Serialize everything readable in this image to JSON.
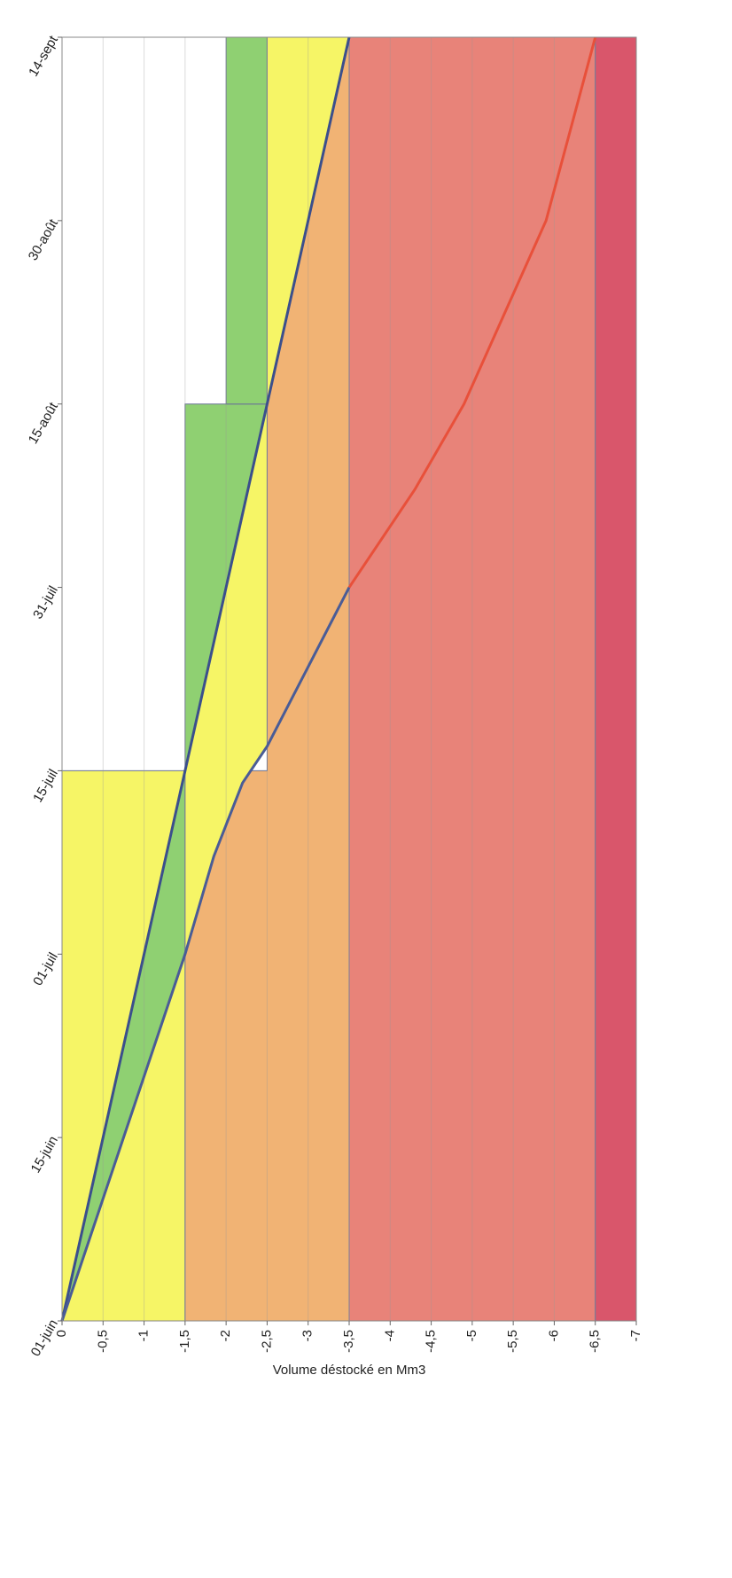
{
  "chart_data": {
    "type": "area",
    "ylabel": "Volume déstocké en Mm3",
    "xlim": [
      0,
      105
    ],
    "xticks": [
      {
        "value": 0,
        "label": "01-juin"
      },
      {
        "value": 15,
        "label": "15-juin"
      },
      {
        "value": 30,
        "label": "01-juil"
      },
      {
        "value": 45,
        "label": "15-juil"
      },
      {
        "value": 60,
        "label": "31-juil"
      },
      {
        "value": 75,
        "label": "15-août"
      },
      {
        "value": 90,
        "label": "30-août"
      },
      {
        "value": 105,
        "label": "14-sept"
      }
    ],
    "ylim": [
      0,
      -7
    ],
    "yticks": [
      0,
      {
        "value": -0.5,
        "label": "-0,5"
      },
      -1,
      {
        "value": -1.5,
        "label": "-1,5"
      },
      -2,
      {
        "value": -2.5,
        "label": "-2,5"
      },
      -3,
      {
        "value": -3.5,
        "label": "-3,5"
      },
      -4,
      {
        "value": -4.5,
        "label": "-4,5"
      },
      -5,
      {
        "value": -5.5,
        "label": "-5,5"
      },
      -6,
      {
        "value": -6.5,
        "label": "-6,5"
      },
      -7
    ],
    "grid": true,
    "zones": [
      {
        "color": "#e88379",
        "x": [
          0,
          105,
          105,
          0
        ],
        "values": [
          -3.5,
          -3.5,
          -6.5,
          -6.5
        ]
      },
      {
        "color": "#d9566b",
        "x": [
          0,
          105,
          105,
          0
        ],
        "values": [
          -6.5,
          -6.5,
          -7,
          -7
        ]
      },
      {
        "color": "#f6f566",
        "x": [
          0,
          45,
          45,
          0
        ],
        "values": [
          0,
          0,
          -1.5,
          -1.5
        ]
      },
      {
        "color": "#f1b374",
        "x": [
          0,
          45,
          45,
          105,
          105,
          0
        ],
        "values": [
          -1.5,
          -1.5,
          -2.5,
          -2.5,
          -3.5,
          -3.5
        ]
      },
      {
        "color": "#8fd072",
        "x": [
          0,
          45,
          45,
          30,
          15,
          0
        ],
        "values": [
          0,
          -1.5,
          -1.5,
          -1.5,
          -0.75,
          0
        ]
      },
      {
        "color": "#f6f566",
        "x": [
          30,
          45,
          75,
          47,
          44,
          38
        ],
        "values": [
          -1.5,
          -1.5,
          -2.5,
          -2.5,
          -2.2,
          -1.85
        ]
      },
      {
        "color": "#8fd072",
        "x": [
          45,
          75,
          75
        ],
        "values": [
          -1.5,
          -1.5,
          -2.5
        ]
      },
      {
        "color": "#8fd072",
        "x": [
          75,
          105,
          105,
          75
        ],
        "values": [
          -2,
          -2,
          -2.5,
          -2.5
        ]
      },
      {
        "color": "#f6f566",
        "x": [
          75,
          105,
          105
        ],
        "values": [
          -2.5,
          -2.5,
          -3.5
        ]
      }
    ],
    "lines": [
      {
        "color": "#3b4f8c",
        "x": [
          0,
          105
        ],
        "values": [
          0,
          -3.5
        ]
      },
      {
        "color": "#4a5c96",
        "x": [
          0,
          15,
          30,
          38,
          44,
          47,
          60
        ],
        "values": [
          0,
          -0.75,
          -1.5,
          -1.85,
          -2.2,
          -2.5,
          -3.5
        ]
      },
      {
        "color": "#e8503a",
        "x": [
          60,
          68,
          75,
          90,
          105
        ],
        "values": [
          -3.5,
          -4.3,
          -4.9,
          -5.9,
          -6.5
        ]
      }
    ]
  }
}
